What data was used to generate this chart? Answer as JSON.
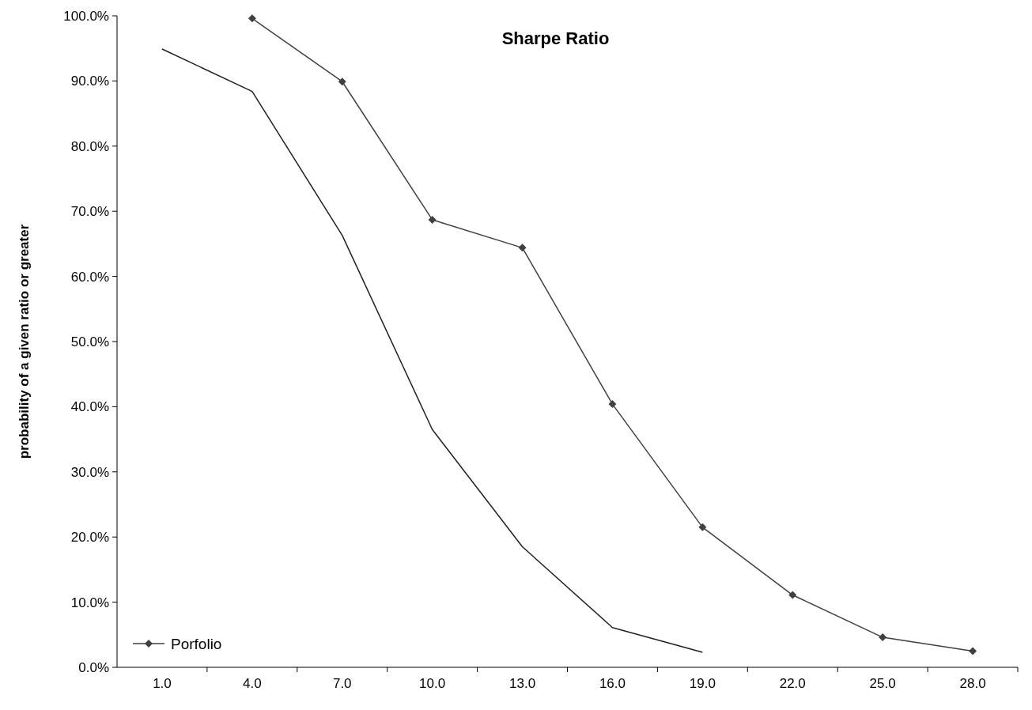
{
  "chart_data": {
    "type": "line",
    "title": "Sharpe Ratio",
    "ylabel": "probability of a given ratio or greater",
    "categories": [
      "1.0",
      "4.0",
      "7.0",
      "10.0",
      "13.0",
      "16.0",
      "19.0",
      "22.0",
      "25.0",
      "28.0"
    ],
    "series": [
      {
        "name": "Porfolio",
        "color": "#404040",
        "marker": "diamond",
        "values": [
          null,
          99.6,
          89.9,
          68.7,
          64.4,
          40.4,
          21.5,
          11.1,
          4.6,
          2.5
        ]
      },
      {
        "color": "#202020",
        "marker": "none",
        "values": [
          94.9,
          88.4,
          66.3,
          36.5,
          18.5,
          6.1,
          2.3,
          null,
          null,
          null
        ]
      }
    ],
    "ylim": [
      0,
      100
    ],
    "yticks": [
      {
        "value": 0,
        "label": "0.0%"
      },
      {
        "value": 10,
        "label": "10.0%"
      },
      {
        "value": 20,
        "label": "20.0%"
      },
      {
        "value": 30,
        "label": "30.0%"
      },
      {
        "value": 40,
        "label": "40.0%"
      },
      {
        "value": 50,
        "label": "50.0%"
      },
      {
        "value": 60,
        "label": "60.0%"
      },
      {
        "value": 70,
        "label": "70.0%"
      },
      {
        "value": 80,
        "label": "80.0%"
      },
      {
        "value": 90,
        "label": "90.0%"
      },
      {
        "value": 100,
        "label": "100.0%"
      }
    ],
    "legend": "bottom left",
    "grid": false
  }
}
